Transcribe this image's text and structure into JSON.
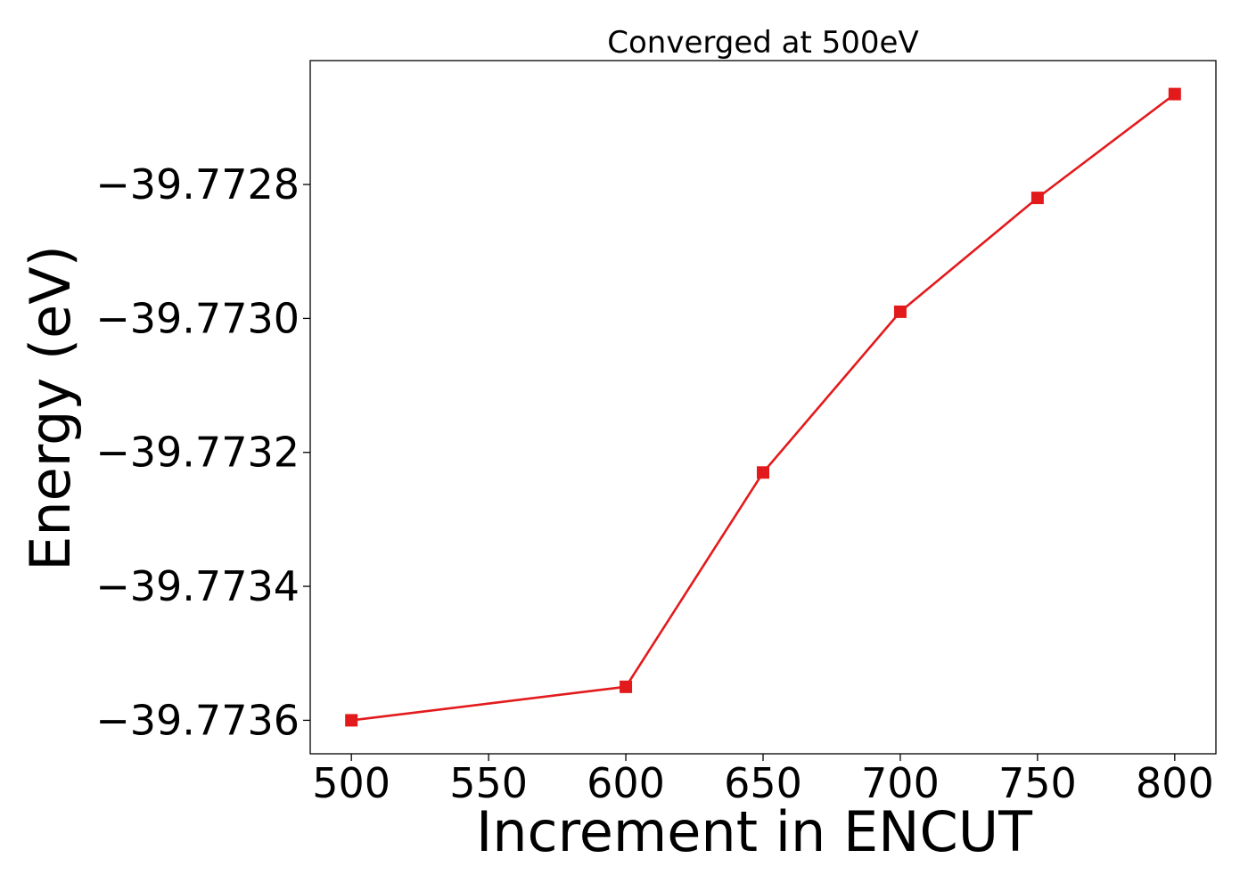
{
  "chart_data": {
    "type": "line",
    "title": "Converged at 500eV",
    "xlabel": "Increment in ENCUT",
    "ylabel": "Energy (eV)",
    "x": [
      500,
      600,
      650,
      700,
      750,
      800
    ],
    "series": [
      {
        "values": [
          -39.7736,
          -39.77355,
          -39.77323,
          -39.77299,
          -39.77282,
          -39.772665
        ],
        "color": "#e31a1c",
        "marker": "square"
      }
    ],
    "xticks": [
      500,
      550,
      600,
      650,
      700,
      750,
      800
    ],
    "xtick_labels": [
      "500",
      "550",
      "600",
      "650",
      "700",
      "750",
      "800"
    ],
    "yticks": [
      -39.7736,
      -39.7734,
      -39.7732,
      -39.773,
      -39.7728
    ],
    "ytick_labels": [
      "−39.7736",
      "−39.7734",
      "−39.7732",
      "−39.7730",
      "−39.7728"
    ],
    "xlim": [
      485,
      815
    ],
    "ylim": [
      -39.77365,
      -39.772615
    ],
    "grid": false,
    "legend": false
  }
}
